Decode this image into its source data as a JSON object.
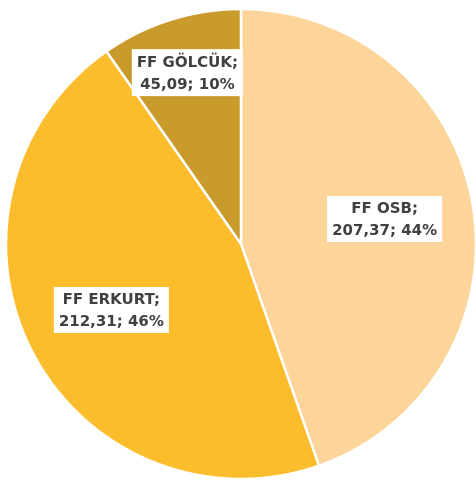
{
  "chart_data": {
    "type": "pie",
    "categories": [
      "FF OSB;",
      "FF ERKURT;",
      "FF GÖLCÜK;"
    ],
    "values": [
      207.37,
      212.31,
      45.09
    ],
    "value_labels": [
      "207,37; 44%",
      "212,31; 46%",
      "45,09; 10%"
    ],
    "colors": [
      "#fdd49a",
      "#fbbd2c",
      "#c99a2c"
    ]
  }
}
